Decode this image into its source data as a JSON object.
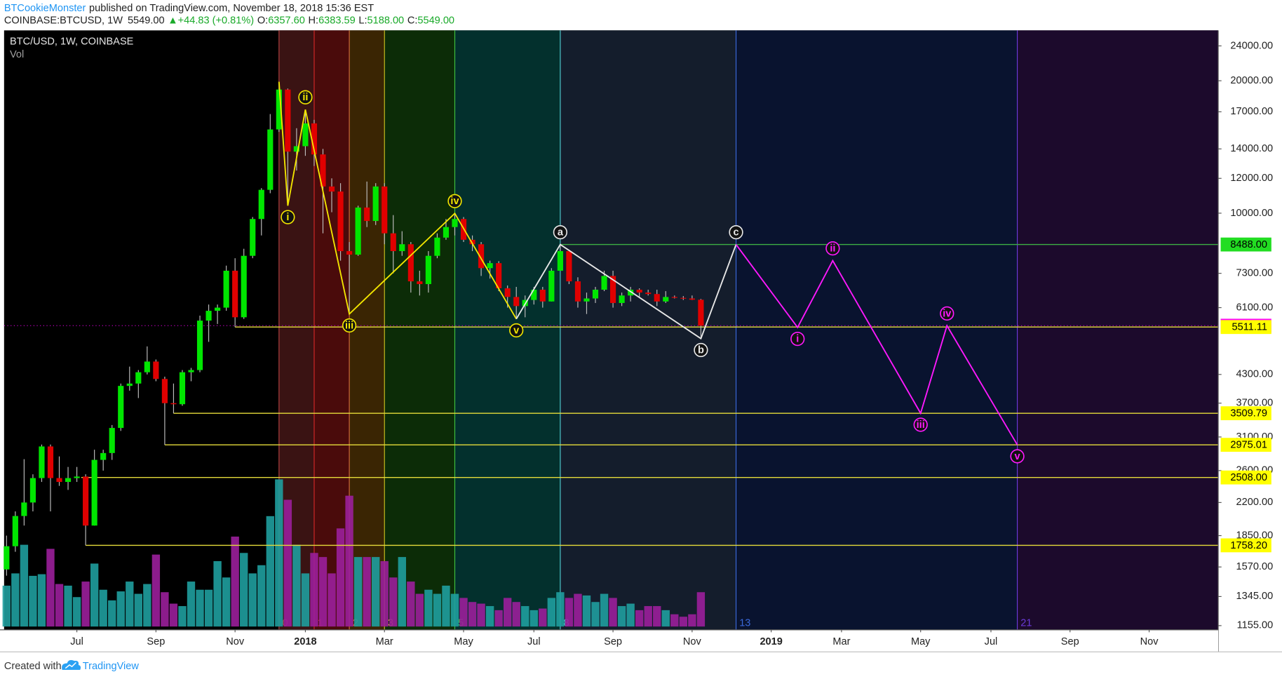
{
  "header": {
    "author": "BTCookieMonster",
    "published": "published on TradingView.com, November 18, 2018 15:36 EST",
    "symbol": "COINBASE:BTCUSD, 1W",
    "price": "5549.00",
    "change": "▲+44.83 (+0.81%)",
    "ohlc": [
      {
        "key": "O:",
        "value": "6357.60"
      },
      {
        "key": "H:",
        "value": "6383.59"
      },
      {
        "key": "L:",
        "value": "5188.00"
      },
      {
        "key": "C:",
        "value": "5549.00"
      }
    ]
  },
  "legend": {
    "title": "BTC/USD, 1W, COINBASE",
    "volume": "Vol"
  },
  "footer": {
    "created": "Created with",
    "brand": "TradingView"
  },
  "chart_data": {
    "type": "candlestick",
    "log_scale": true,
    "background": "#000000",
    "ylim": [
      1130,
      26030
    ],
    "yticks": [
      {
        "value": 24000,
        "label": "24000.00"
      },
      {
        "value": 20000,
        "label": "20000.00"
      },
      {
        "value": 17000,
        "label": "17000.00"
      },
      {
        "value": 14000,
        "label": "14000.00"
      },
      {
        "value": 12000,
        "label": "12000.00"
      },
      {
        "value": 10000,
        "label": "10000.00"
      },
      {
        "value": 7300,
        "label": "7300.00"
      },
      {
        "value": 6100,
        "label": "6100.00"
      },
      {
        "value": 4300,
        "label": "4300.00"
      },
      {
        "value": 3700,
        "label": "3700.00"
      },
      {
        "value": 3100,
        "label": "3100.00"
      },
      {
        "value": 2600,
        "label": "2600.00"
      },
      {
        "value": 2200,
        "label": "2200.00"
      },
      {
        "value": 1850,
        "label": "1850.00"
      },
      {
        "value": 1570,
        "label": "1570.00"
      },
      {
        "value": 1345,
        "label": "1345.00"
      },
      {
        "value": 1155,
        "label": "1155.00"
      }
    ],
    "xlim": [
      -0.744,
      137.86
    ],
    "xticks": [
      {
        "value": 8,
        "label": "Jul"
      },
      {
        "value": 17,
        "label": "Sep"
      },
      {
        "value": 26,
        "label": "Nov"
      },
      {
        "value": 34,
        "label": "2018"
      },
      {
        "value": 43,
        "label": "Mar"
      },
      {
        "value": 52,
        "label": "May"
      },
      {
        "value": 60,
        "label": "Jul"
      },
      {
        "value": 69,
        "label": "Sep"
      },
      {
        "value": 78,
        "label": "Nov"
      },
      {
        "value": 87,
        "label": "2019"
      },
      {
        "value": 95,
        "label": "Mar"
      },
      {
        "value": 104,
        "label": "May"
      },
      {
        "value": 112,
        "label": "Jul"
      },
      {
        "value": 121,
        "label": "Sep"
      },
      {
        "value": 130,
        "label": "Nov"
      }
    ],
    "candle_colors": {
      "up": "#00e600",
      "down": "#e00000",
      "wick": "#bdbdbd"
    },
    "volume_colors": {
      "up": "#1f9e9e",
      "down": "#9b1f9b"
    },
    "candles": {
      "x": [
        0,
        1,
        2,
        3,
        4,
        5,
        6,
        7,
        8,
        9,
        10,
        11,
        12,
        13,
        14,
        15,
        16,
        17,
        18,
        19,
        20,
        21,
        22,
        23,
        24,
        25,
        26,
        27,
        28,
        29,
        30,
        31,
        32,
        33,
        34,
        35,
        36,
        37,
        38,
        39,
        40,
        41,
        42,
        43,
        44,
        45,
        46,
        47,
        48,
        49,
        50,
        51,
        52,
        53,
        54,
        55,
        56,
        57,
        58,
        59,
        60,
        61,
        62,
        63,
        64,
        65,
        66,
        67,
        68,
        69,
        70,
        71,
        72,
        73,
        74,
        75,
        76,
        77,
        78,
        79
      ],
      "open": [
        1550,
        1750,
        2050,
        2200,
        2500,
        2950,
        2500,
        2450,
        2500,
        2520,
        1950,
        2750,
        2850,
        3250,
        4050,
        4100,
        4350,
        4600,
        4200,
        3700,
        3680,
        4350,
        4400,
        5700,
        6000,
        6100,
        7400,
        5800,
        8000,
        9700,
        11300,
        15500,
        19100,
        13800,
        14200,
        16000,
        13600,
        11500,
        11200,
        8200,
        8050,
        10300,
        9600,
        11500,
        9000,
        8200,
        8500,
        7000,
        6900,
        8000,
        8800,
        9300,
        9700,
        8700,
        8500,
        7500,
        7700,
        6750,
        6450,
        6150,
        6350,
        6700,
        6300,
        7400,
        8200,
        7000,
        6300,
        6400,
        6700,
        7200,
        6250,
        6500,
        6700,
        6600,
        6550,
        6300,
        6450,
        6420,
        6400,
        6357.6
      ],
      "high": [
        1850,
        2100,
        2760,
        2550,
        2980,
        2980,
        2800,
        2650,
        2650,
        2550,
        2900,
        2900,
        3300,
        4100,
        4480,
        4400,
        4980,
        4650,
        4250,
        4100,
        4400,
        4450,
        5850,
        6200,
        6200,
        7600,
        7900,
        8300,
        9800,
        11400,
        16800,
        19891,
        19200,
        15600,
        17200,
        16300,
        14000,
        12000,
        11700,
        8600,
        10400,
        11800,
        11700,
        11700,
        9900,
        9100,
        8600,
        7400,
        8200,
        9000,
        9700,
        9990,
        9800,
        8900,
        8600,
        7800,
        7780,
        6850,
        6800,
        6500,
        6800,
        6800,
        7500,
        8488,
        8250,
        7150,
        6600,
        6800,
        7400,
        7400,
        6600,
        6800,
        6750,
        6700,
        6700,
        6650,
        6500,
        6480,
        6500,
        6383.59
      ],
      "low": [
        1500,
        1700,
        1950,
        2100,
        2450,
        2100,
        2400,
        2350,
        2450,
        1758.2,
        1950,
        2600,
        2750,
        3200,
        3950,
        3800,
        4300,
        4150,
        2975.01,
        3509.79,
        3650,
        4150,
        4350,
        5100,
        5600,
        6000,
        5511.11,
        5750,
        7900,
        8900,
        11100,
        15300,
        10400,
        12500,
        13500,
        12800,
        9000,
        10050,
        7800,
        5900,
        8000,
        9300,
        9400,
        8500,
        7300,
        8000,
        6600,
        6500,
        6600,
        7900,
        8700,
        8900,
        8600,
        8200,
        7200,
        7100,
        6650,
        6100,
        5750,
        5800,
        6200,
        6100,
        6300,
        7400,
        6900,
        6100,
        5900,
        6250,
        6650,
        6100,
        6150,
        6300,
        6450,
        6500,
        6150,
        6250,
        6400,
        6350,
        6350,
        5188
      ],
      "close": [
        1750,
        2050,
        2200,
        2500,
        2950,
        2500,
        2450,
        2500,
        2520,
        1950,
        2750,
        2850,
        3250,
        4050,
        4100,
        4350,
        4600,
        4200,
        3700,
        3680,
        4350,
        4400,
        5700,
        6000,
        6100,
        7400,
        5800,
        8000,
        9700,
        11300,
        15500,
        19100,
        13800,
        14200,
        16000,
        13600,
        11500,
        11200,
        8200,
        8050,
        10300,
        9600,
        11500,
        9000,
        8200,
        8500,
        7000,
        6900,
        8000,
        8800,
        9300,
        9700,
        8700,
        8500,
        7500,
        7700,
        6750,
        6450,
        6150,
        6350,
        6700,
        6300,
        7400,
        8200,
        7000,
        6300,
        6400,
        6700,
        7200,
        6250,
        6500,
        6700,
        6600,
        6550,
        6300,
        6450,
        6420,
        6400,
        6357.6,
        5549
      ]
    },
    "volume": [
      50,
      65,
      100,
      62,
      64,
      95,
      52,
      50,
      36,
      55,
      77,
      45,
      32,
      43,
      55,
      40,
      52,
      88,
      42,
      28,
      25,
      55,
      45,
      45,
      80,
      60,
      110,
      90,
      65,
      75,
      135,
      180,
      155,
      100,
      65,
      90,
      85,
      65,
      120,
      160,
      85,
      85,
      85,
      80,
      60,
      85,
      55,
      40,
      45,
      40,
      50,
      40,
      35,
      30,
      28,
      25,
      20,
      35,
      30,
      25,
      20,
      22,
      35,
      42,
      35,
      40,
      38,
      30,
      40,
      35,
      25,
      28,
      20,
      25,
      25,
      20,
      15,
      12,
      15,
      42
    ],
    "fib_time_zones": {
      "labels": [
        0,
        1,
        2,
        3,
        5,
        8,
        13,
        21
      ],
      "x": [
        31,
        35,
        39,
        43,
        51,
        63,
        83,
        115
      ],
      "fills": [
        "#3a1313",
        "#4a0b0b",
        "#3a2503",
        "#0c2c07",
        "#03302d",
        "#141d2c",
        "#09132f",
        "#1c0a2c"
      ],
      "lines": [
        "#b04040",
        "#d02828",
        "#d06a3a",
        "#c8c020",
        "#40c040",
        "#50c8d0",
        "#3a68d8",
        "#6a3ad8"
      ]
    },
    "levels": [
      {
        "value": 8488,
        "label": "8488.00",
        "x": 63,
        "color": "#3cb043",
        "label_bg": "#22dd22",
        "label_color": "#000000"
      },
      {
        "value": 5549,
        "label": "5549.00",
        "style": "dotted",
        "color": "#b000b0",
        "label_bg": "#ff00ff",
        "label_color": "#ffffff"
      },
      {
        "value": 5511.11,
        "label": "5511.11",
        "x": 26,
        "color": "#e6dc3a",
        "label_bg": "#ffff00",
        "label_color": "#000000"
      },
      {
        "value": 3509.79,
        "label": "3509.79",
        "x": 19,
        "color": "#e6dc3a",
        "label_bg": "#ffff00",
        "label_color": "#000000"
      },
      {
        "value": 2975.01,
        "label": "2975.01",
        "x": 18,
        "color": "#e6dc3a",
        "label_bg": "#ffff00",
        "label_color": "#000000"
      },
      {
        "value": 2508,
        "label": "2508.00",
        "x": 8.5,
        "color": "#e6dc3a",
        "label_bg": "#ffff00",
        "label_color": "#000000"
      },
      {
        "value": 1758.2,
        "label": "1758.20",
        "x": 9,
        "color": "#e6dc3a",
        "label_bg": "#ffff00",
        "label_color": "#000000"
      }
    ],
    "waves": [
      {
        "color": "#f2e600",
        "x": [
          31,
          32,
          34,
          39,
          51,
          58
        ],
        "y": [
          19891,
          10400,
          17200,
          5900,
          9990,
          5750
        ],
        "labels": [
          null,
          "i",
          "ii",
          "iii",
          "iv",
          "v"
        ]
      },
      {
        "color": "#e8e8e8",
        "x": [
          58,
          63,
          79,
          83
        ],
        "y": [
          5750,
          8488,
          5188,
          8488
        ],
        "labels": [
          null,
          "a",
          "b",
          "c"
        ]
      },
      {
        "color": "#ff19ff",
        "x": [
          83,
          90,
          94,
          104,
          107,
          115
        ],
        "y": [
          8488,
          5500,
          7800,
          3509.79,
          5549,
          2975.01
        ],
        "labels": [
          null,
          "i",
          "ii",
          "iii",
          "iv",
          "v"
        ]
      }
    ]
  }
}
